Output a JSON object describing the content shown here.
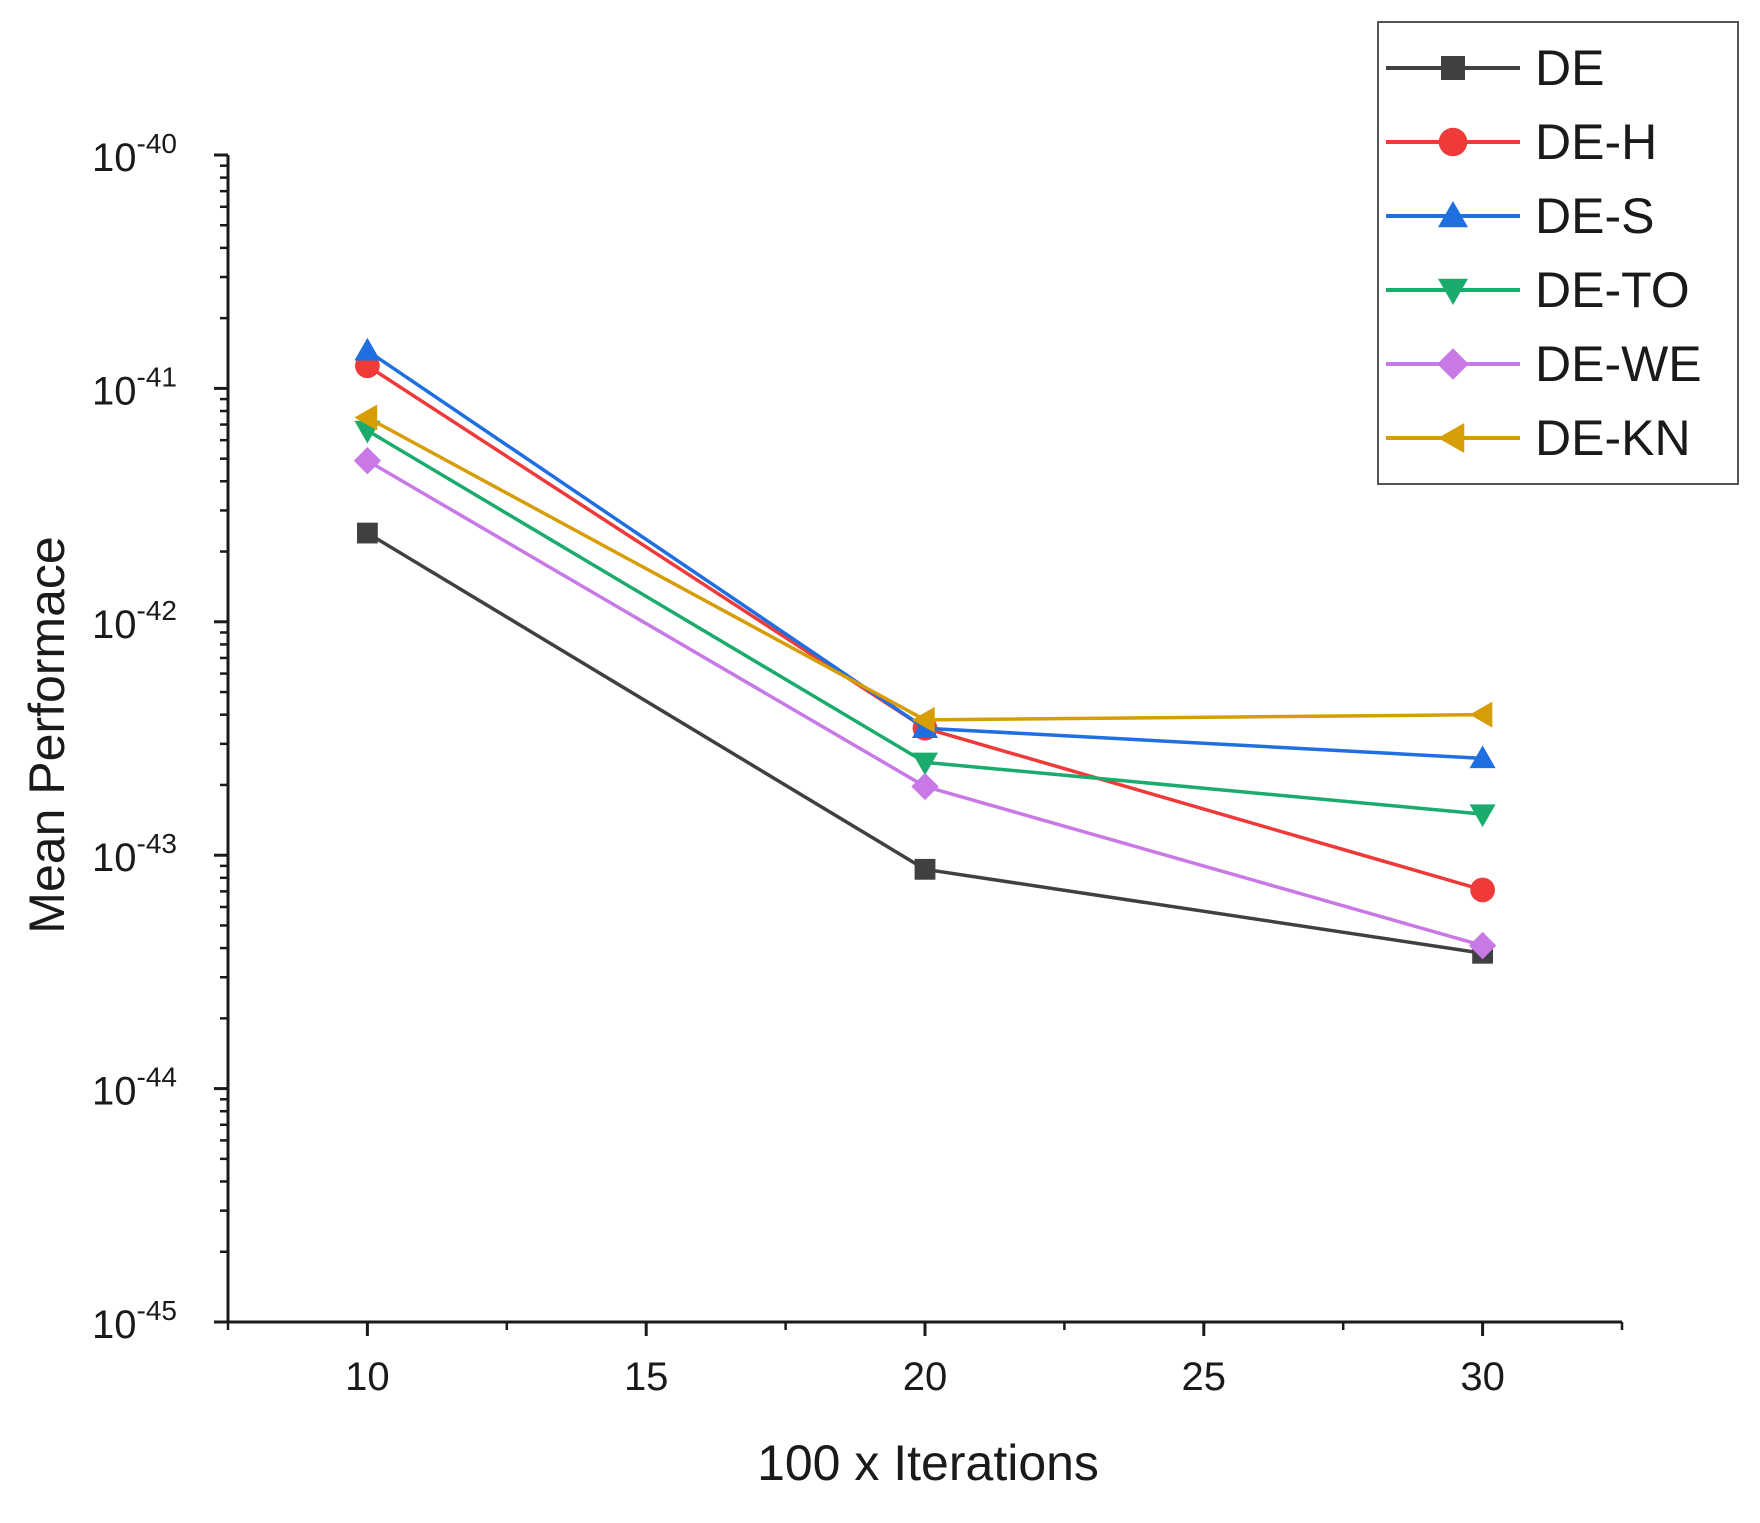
{
  "chart_data": {
    "type": "line",
    "title": "",
    "xlabel": "100 x Iterations",
    "ylabel": "Mean Performace",
    "yscale": "log",
    "xlim": [
      7.5,
      32.5
    ],
    "ylim": [
      1e-45,
      1e-40
    ],
    "x": [
      10,
      20,
      30
    ],
    "x_ticks": [
      {
        "value": 10,
        "label": "10"
      },
      {
        "value": 15,
        "label": "15"
      },
      {
        "value": 20,
        "label": "20"
      },
      {
        "value": 25,
        "label": "25"
      },
      {
        "value": 30,
        "label": "30"
      }
    ],
    "y_ticks": [
      {
        "exp": -45,
        "base": "10",
        "sup": "-45"
      },
      {
        "exp": -44,
        "base": "10",
        "sup": "-44"
      },
      {
        "exp": -43,
        "base": "10",
        "sup": "-43"
      },
      {
        "exp": -42,
        "base": "10",
        "sup": "-42"
      },
      {
        "exp": -41,
        "base": "10",
        "sup": "-41"
      },
      {
        "exp": -40,
        "base": "10",
        "sup": "-40"
      }
    ],
    "grid": false,
    "legend_position": "top-right",
    "series": [
      {
        "name": "DE",
        "color": "#404040",
        "marker": "square",
        "values": [
          2.4e-42,
          8.7e-44,
          3.8e-44
        ]
      },
      {
        "name": "DE-H",
        "color": "#f03a3a",
        "marker": "circle",
        "values": [
          1.25e-41,
          3.5e-43,
          7.1e-44
        ]
      },
      {
        "name": "DE-S",
        "color": "#1f6fe0",
        "marker": "triangle-up",
        "values": [
          1.45e-41,
          3.5e-43,
          2.6e-43
        ]
      },
      {
        "name": "DE-TO",
        "color": "#1aab6d",
        "marker": "triangle-down",
        "values": [
          6.6e-42,
          2.5e-43,
          1.5e-43
        ]
      },
      {
        "name": "DE-WE",
        "color": "#c979e6",
        "marker": "diamond",
        "values": [
          4.9e-42,
          1.97e-43,
          4.1e-44
        ]
      },
      {
        "name": "DE-KN",
        "color": "#d79d05",
        "marker": "triangle-left",
        "values": [
          7.5e-42,
          3.8e-43,
          4e-43
        ]
      }
    ]
  }
}
